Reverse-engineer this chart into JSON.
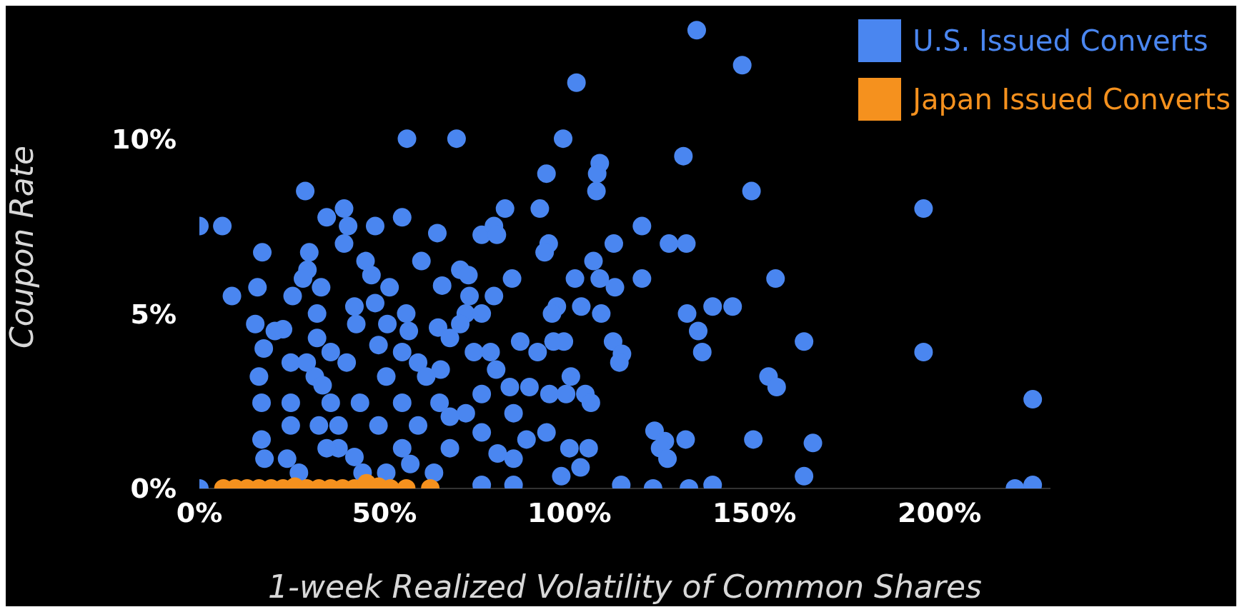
{
  "chart_data": {
    "type": "scatter",
    "xlabel": "1-week Realized Volatility of Common Shares",
    "ylabel": "Coupon Rate",
    "xlim": [
      0,
      230
    ],
    "ylim": [
      0,
      13.8
    ],
    "xticks": [
      {
        "value": 0,
        "label": "0%"
      },
      {
        "value": 50,
        "label": "50%"
      },
      {
        "value": 100,
        "label": "100%"
      },
      {
        "value": 150,
        "label": "150%"
      },
      {
        "value": 200,
        "label": "200%"
      }
    ],
    "yticks": [
      {
        "value": 0,
        "label": "0%"
      },
      {
        "value": 5,
        "label": "5%"
      },
      {
        "value": 10,
        "label": "10%"
      }
    ],
    "grid": false,
    "legend": "top right",
    "marker": "circle",
    "series": [
      {
        "name": "U.S. Issued Converts",
        "color": "#4a86f0",
        "x": [
          134.4,
          146.7,
          101.9,
          56.1,
          69.5,
          98.3,
          130.8,
          93.8,
          108.2,
          107.5,
          107.3,
          149.2,
          28.6,
          195.7,
          92.0,
          82.6,
          39.1,
          34.4,
          54.8,
          47.5,
          40.2,
          39.1,
          6.2,
          0,
          64.3,
          76.3,
          79.6,
          80.4,
          119.6,
          126.9,
          131.6,
          112.0,
          94.4,
          93.3,
          17.0,
          29.7,
          44.9,
          60.0,
          106.5,
          29.2,
          70.5,
          72.7,
          46.5,
          101.5,
          108.2,
          119.6,
          155.7,
          28.0,
          84.5,
          65.6,
          112.3,
          15.7,
          32.9,
          51.4,
          8.8,
          25.2,
          47.5,
          73.0,
          79.6,
          96.6,
          103.2,
          138.7,
          144.1,
          108.6,
          131.8,
          31.8,
          55.9,
          72.0,
          76.3,
          95.3,
          15.1,
          42.4,
          50.8,
          70.5,
          134.8,
          20.4,
          31.8,
          56.6,
          64.5,
          86.7,
          95.7,
          98.5,
          111.8,
          163.4,
          17.4,
          135.9,
          195.7,
          114.2,
          91.4,
          78.7,
          113.5,
          24.7,
          39.8,
          59.1,
          65.2,
          80.2,
          16.1,
          31.2,
          50.5,
          100.4,
          153.8,
          156.0,
          89.2,
          83.9,
          94.6,
          76.3,
          99.1,
          104.3,
          105.8,
          225.2,
          16.8,
          24.7,
          35.5,
          43.4,
          54.8,
          64.9,
          84.9,
          72.0,
          24.7,
          37.6,
          48.4,
          59.1,
          123.0,
          125.8,
          131.4,
          149.7,
          165.8,
          88.4,
          16.8,
          93.8,
          100.0,
          105.2,
          124.5,
          126.5,
          17.6,
          23.7,
          37.6,
          54.8,
          67.7,
          80.6,
          84.9,
          103.0,
          97.8,
          163.4,
          138.7,
          225.2,
          114.0,
          122.6,
          132.3,
          220.4,
          0,
          76.3,
          84.9,
          26.9,
          44.1,
          63.4,
          33.3,
          32.3,
          34.4,
          29.0,
          35.5,
          22.6,
          41.9,
          48.4,
          54.8,
          61.3,
          67.7,
          74.2,
          67.7,
          76.3,
          41.9,
          50.5,
          57.0
        ],
        "values": [
          13.1,
          12.1,
          11.6,
          10.0,
          10.0,
          10.0,
          9.5,
          9.0,
          9.3,
          9.0,
          8.5,
          8.5,
          8.5,
          8.0,
          8.0,
          8.0,
          8.0,
          7.75,
          7.75,
          7.5,
          7.5,
          7.0,
          7.5,
          7.5,
          7.3,
          7.25,
          7.5,
          7.25,
          7.5,
          7.0,
          7.0,
          7.0,
          7.0,
          6.75,
          6.75,
          6.75,
          6.5,
          6.5,
          6.5,
          6.25,
          6.25,
          6.1,
          6.1,
          6.0,
          6.0,
          6.0,
          6.0,
          6.0,
          6.0,
          5.8,
          5.75,
          5.75,
          5.75,
          5.75,
          5.5,
          5.5,
          5.3,
          5.5,
          5.5,
          5.2,
          5.2,
          5.2,
          5.2,
          5.0,
          5.0,
          5.0,
          5.0,
          5.0,
          5.0,
          5.0,
          4.7,
          4.7,
          4.7,
          4.7,
          4.5,
          4.5,
          4.3,
          4.5,
          4.6,
          4.2,
          4.2,
          4.2,
          4.2,
          4.2,
          4.0,
          3.9,
          3.9,
          3.85,
          3.9,
          3.9,
          3.6,
          3.6,
          3.6,
          3.6,
          3.4,
          3.4,
          3.2,
          3.2,
          3.2,
          3.2,
          3.2,
          2.9,
          2.9,
          2.9,
          2.7,
          2.7,
          2.7,
          2.7,
          2.45,
          2.55,
          2.45,
          2.45,
          2.45,
          2.45,
          2.45,
          2.45,
          2.15,
          2.15,
          1.8,
          1.8,
          1.8,
          1.8,
          1.65,
          1.35,
          1.4,
          1.4,
          1.3,
          1.4,
          1.4,
          1.6,
          1.15,
          1.15,
          1.15,
          0.85,
          0.85,
          0.85,
          1.15,
          1.15,
          1.15,
          1.0,
          0.85,
          0.6,
          0.35,
          0.35,
          0.1,
          0.1,
          0.1,
          0.0,
          0.0,
          0.0,
          0,
          0.1,
          0.1,
          0.45,
          0.45,
          0.45,
          2.95,
          1.8,
          1.15,
          3.6,
          3.9,
          4.55,
          5.2,
          4.1,
          3.9,
          3.2,
          4.3,
          3.9,
          2.05,
          1.6,
          0.9,
          0.45,
          0.7
        ]
      },
      {
        "name": "Japan Issued Converts",
        "color": "#f5911e",
        "x": [
          6.5,
          9.7,
          12.9,
          16.1,
          19.4,
          22.6,
          25.8,
          29.0,
          32.3,
          35.5,
          38.7,
          41.9,
          45.2,
          48.4,
          51.6,
          55.9,
          62.4
        ],
        "values": [
          0,
          0,
          0,
          0,
          0,
          0,
          0.05,
          0,
          0,
          0,
          0,
          0,
          0.15,
          0.05,
          0,
          0,
          0
        ]
      }
    ]
  }
}
